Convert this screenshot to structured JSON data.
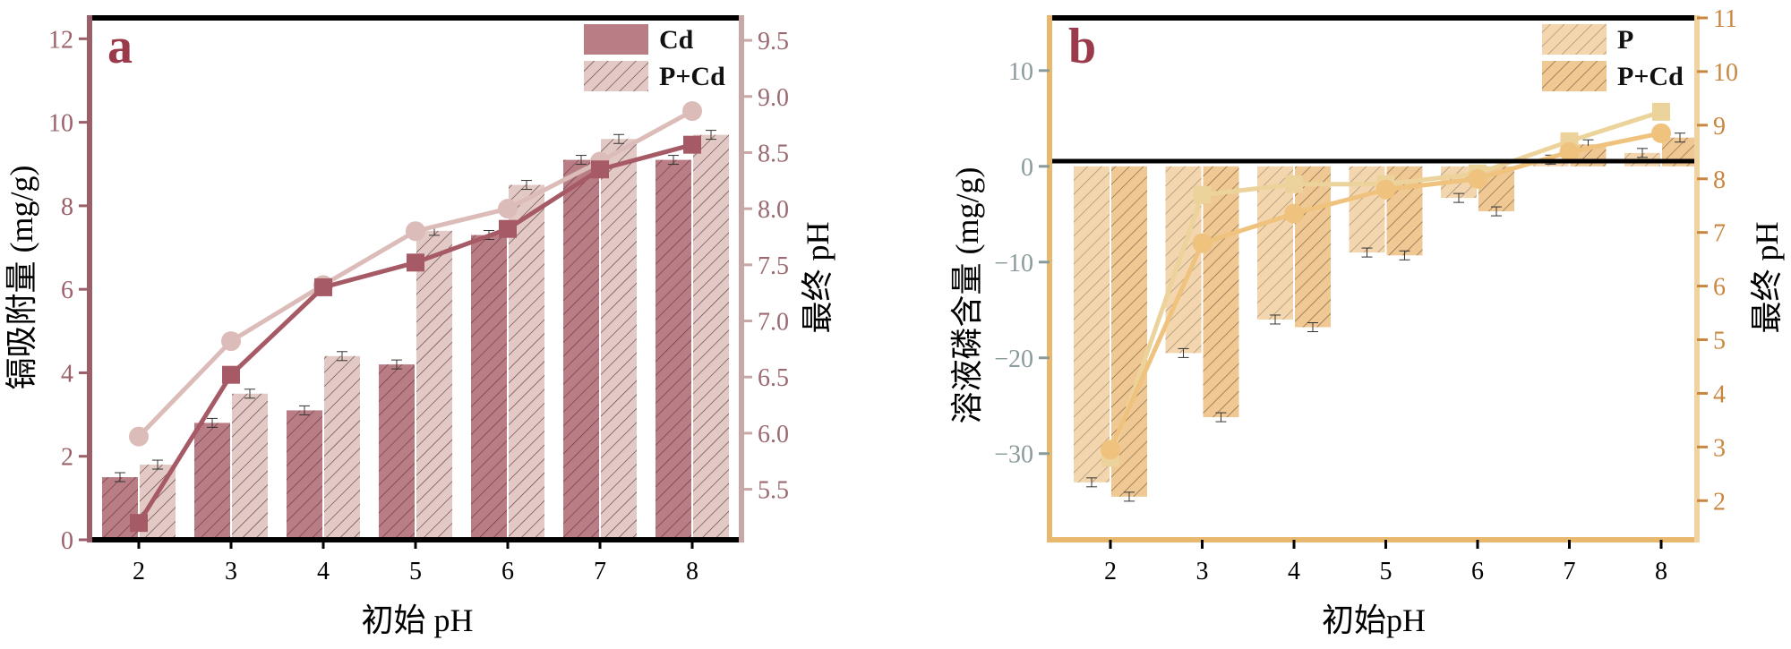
{
  "colors": {
    "a_dark": "#b97d86",
    "a_dark_line": "#a65a66",
    "a_light": "#e3c9c6",
    "a_light_line": "#dcbcb8",
    "a_axis": "#9a5f68",
    "a_right_axis": "#c8a8a6",
    "a_label": "#9a3a4a",
    "b_bar": "#efc893",
    "b_line1": "#ecd29b",
    "b_line2": "#efc27e",
    "b_axis": "#e7b86e",
    "b_left_tick": "#8a9a9c",
    "b_right_tick": "#c9863f",
    "b_label": "#9a3a4a"
  },
  "chart_data": [
    {
      "panel": "a",
      "type": "bar",
      "xlabel": "初始 pH",
      "ylabel": "镉吸附量 (mg/g)",
      "y2label": "最终 pH",
      "categories": [
        "2",
        "3",
        "4",
        "5",
        "6",
        "7",
        "8"
      ],
      "ylim": [
        0,
        12.5
      ],
      "yticks": [
        "0",
        "2",
        "4",
        "6",
        "8",
        "10",
        "12"
      ],
      "y2lim": [
        5.05,
        9.7
      ],
      "y2ticks": [
        "5.5",
        "6.0",
        "6.5",
        "7.0",
        "7.5",
        "8.0",
        "8.5",
        "9.0",
        "9.5"
      ],
      "legend": [
        "Cd",
        "P+Cd"
      ],
      "legend_position": "top-right",
      "series": [
        {
          "name": "Cd",
          "values": [
            1.5,
            2.8,
            3.1,
            4.2,
            7.3,
            9.1,
            9.1
          ]
        },
        {
          "name": "P+Cd",
          "values": [
            1.8,
            3.5,
            4.4,
            7.4,
            8.5,
            9.6,
            9.7
          ]
        }
      ],
      "lines": [
        {
          "series": "Cd",
          "marker": "square",
          "values": [
            5.2,
            6.52,
            7.3,
            7.52,
            7.82,
            8.35,
            8.57
          ]
        },
        {
          "series": "P+Cd",
          "marker": "circle",
          "values": [
            5.97,
            6.82,
            7.32,
            7.8,
            8.0,
            8.42,
            8.87
          ]
        }
      ]
    },
    {
      "panel": "b",
      "type": "bar",
      "xlabel": "初始pH",
      "ylabel": "溶液磷含量 (mg/g)",
      "y2label": "最终 pH",
      "categories": [
        "2",
        "3",
        "4",
        "5",
        "6",
        "7",
        "8"
      ],
      "ylim": [
        -39,
        15.5
      ],
      "yticks": [
        "−30",
        "−20",
        "−10",
        "0",
        "10"
      ],
      "y2lim": [
        1.27,
        11
      ],
      "y2ticks": [
        "2",
        "3",
        "4",
        "5",
        "6",
        "7",
        "8",
        "9",
        "10",
        "11"
      ],
      "legend": [
        "P",
        "P+Cd"
      ],
      "legend_position": "top-right",
      "series": [
        {
          "name": "P",
          "values": [
            -33.0,
            -19.5,
            -16.0,
            -9.0,
            -3.3,
            0.7,
            1.4
          ]
        },
        {
          "name": "P+Cd",
          "values": [
            -34.5,
            -26.2,
            -16.8,
            -9.3,
            -4.7,
            2.3,
            3.0
          ]
        }
      ],
      "lines": [
        {
          "series": "P",
          "marker": "square",
          "values": [
            2.8,
            7.7,
            7.9,
            7.9,
            8.1,
            8.7,
            9.25
          ]
        },
        {
          "series": "P+Cd",
          "marker": "circle",
          "values": [
            2.95,
            6.8,
            7.35,
            7.8,
            8.0,
            8.5,
            8.85
          ]
        }
      ]
    }
  ]
}
